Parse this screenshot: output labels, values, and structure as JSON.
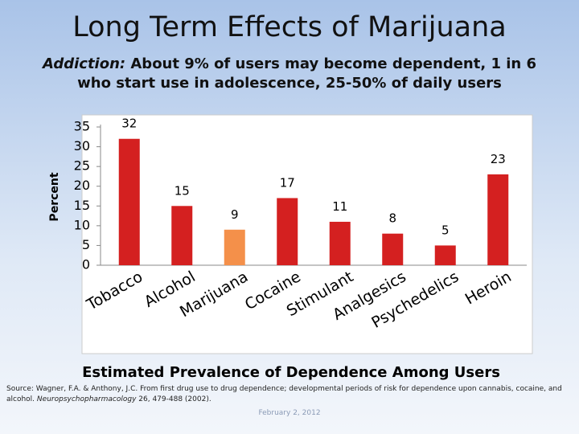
{
  "title": "Long Term Effects of Marijuana",
  "subtitle_lead": "Addiction:",
  "subtitle": "About 9% of users may become dependent, 1 in 6 who start use in adolescence, 25-50% of daily users",
  "chart_data": {
    "type": "bar",
    "ylabel": "Percent",
    "categories": [
      "Tobacco",
      "Alcohol",
      "Marijuana",
      "Cocaine",
      "Stimulant",
      "Analgesics",
      "Psychedelics",
      "Heroin"
    ],
    "values": [
      32,
      15,
      9,
      17,
      11,
      8,
      5,
      23
    ],
    "colors": [
      "#d42020",
      "#d42020",
      "#f4904a",
      "#d42020",
      "#d42020",
      "#d42020",
      "#d42020",
      "#d42020"
    ],
    "ylim": [
      0,
      35
    ],
    "yticks": [
      0,
      5,
      10,
      15,
      20,
      25,
      30,
      35
    ],
    "grid": false,
    "caption": "Estimated Prevalence of Dependence Among Users"
  },
  "source": {
    "pre": "Source: Wagner, F.A. & Anthony, J.C. From first drug use to drug dependence; developmental periods of risk for dependence upon cannabis, cocaine, and alcohol.",
    "journal": "Neuropsychopharmacology",
    "post": "26, 479-488 (2002).",
    "date": "February 2, 2012"
  }
}
